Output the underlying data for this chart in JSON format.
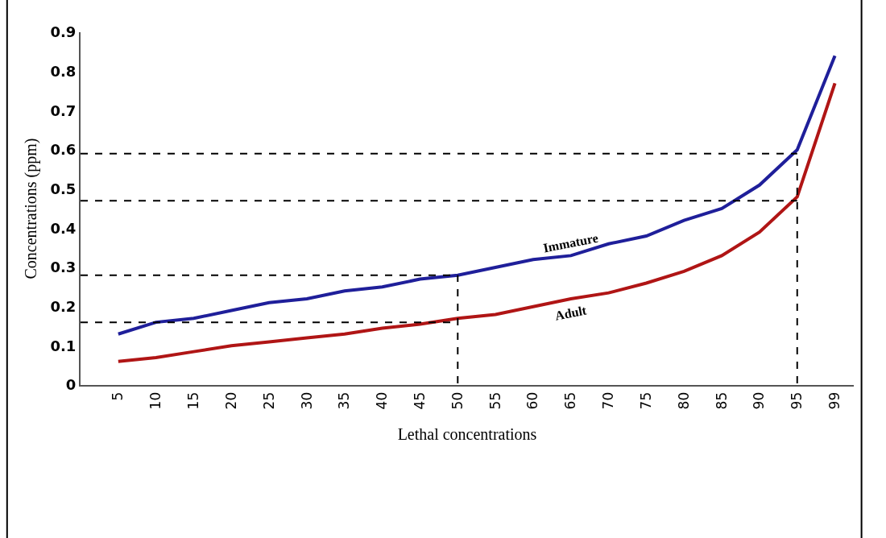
{
  "chart_data": {
    "type": "line",
    "xlabel": "Lethal concentrations",
    "ylabel": "Concentrations (ppm)",
    "categories": [
      "5",
      "10",
      "15",
      "20",
      "25",
      "30",
      "35",
      "40",
      "45",
      "50",
      "55",
      "60",
      "65",
      "70",
      "75",
      "80",
      "85",
      "90",
      "95",
      "99"
    ],
    "series": [
      {
        "name": "Immature",
        "color": "#1f1f9a",
        "values": [
          0.13,
          0.16,
          0.17,
          0.19,
          0.21,
          0.22,
          0.24,
          0.25,
          0.27,
          0.28,
          0.3,
          0.32,
          0.33,
          0.36,
          0.38,
          0.42,
          0.45,
          0.51,
          0.6,
          0.84
        ]
      },
      {
        "name": "Adult",
        "color": "#b01515",
        "values": [
          0.06,
          0.07,
          0.085,
          0.1,
          0.11,
          0.12,
          0.13,
          0.145,
          0.155,
          0.17,
          0.18,
          0.2,
          0.22,
          0.235,
          0.26,
          0.29,
          0.33,
          0.39,
          0.48,
          0.77
        ]
      }
    ],
    "ref_lines": [
      {
        "axis": "y",
        "value": 0.59,
        "line_style": "dashed"
      },
      {
        "axis": "y",
        "value": 0.47,
        "line_style": "dashed"
      },
      {
        "axis": "y",
        "value": 0.28,
        "line_style": "dashed"
      },
      {
        "axis": "y",
        "value": 0.16,
        "line_style": "dashed"
      },
      {
        "axis": "x",
        "value": "50",
        "line_style": "dashed"
      },
      {
        "axis": "x",
        "value": "95",
        "line_style": "dashed"
      }
    ],
    "ylim": [
      0,
      0.9
    ],
    "yticks": [
      0,
      0.1,
      0.2,
      0.3,
      0.4,
      0.5,
      0.6,
      0.7,
      0.8,
      0.9
    ],
    "marker": "none",
    "line_style": "solid"
  }
}
